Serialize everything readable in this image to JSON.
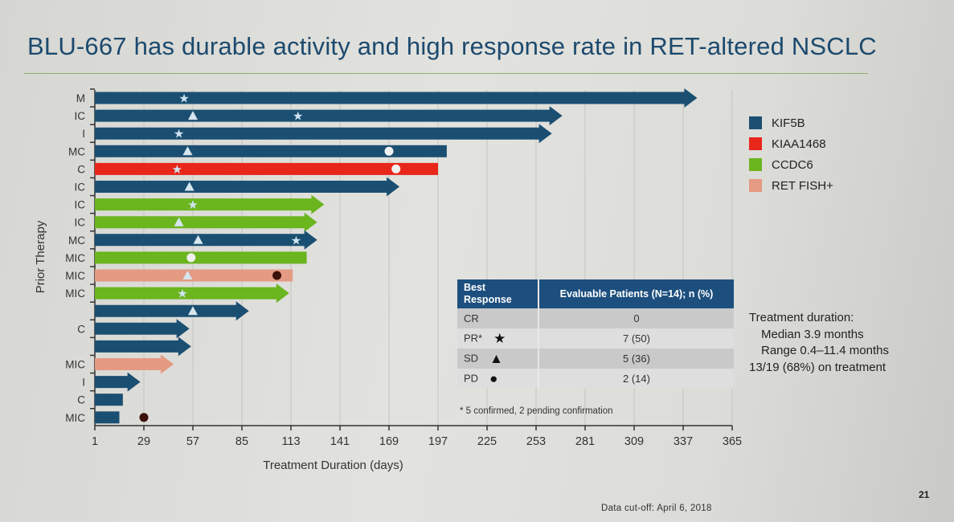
{
  "title": "BLU-667 has durable activity and high response rate in RET-altered NSCLC",
  "colors": {
    "KIF5B": "#1b4f72",
    "KIAA1468": "#e8261a",
    "CCDC6": "#6bb51f",
    "RET FISH+": "#e59a83",
    "title": "#1c4a6e"
  },
  "legend": [
    "KIF5B",
    "KIAA1468",
    "CCDC6",
    "RET FISH+"
  ],
  "chart_data": {
    "type": "swimmer",
    "xlabel": "Treatment Duration (days)",
    "ylabel": "Prior Therapy",
    "xlim": [
      1,
      365
    ],
    "xticks": [
      1,
      29,
      57,
      85,
      113,
      141,
      169,
      197,
      225,
      253,
      281,
      309,
      337,
      365
    ],
    "grid": true,
    "legend_position": "right",
    "patients": [
      {
        "prior": "M",
        "fusion": "KIF5B",
        "duration": 345,
        "ongoing": true,
        "markers": [
          {
            "type": "PR",
            "day": 52
          }
        ]
      },
      {
        "prior": "IC",
        "fusion": "KIF5B",
        "duration": 268,
        "ongoing": true,
        "markers": [
          {
            "type": "SD",
            "day": 57
          },
          {
            "type": "PR",
            "day": 117
          }
        ]
      },
      {
        "prior": "I",
        "fusion": "KIF5B",
        "duration": 262,
        "ongoing": true,
        "markers": [
          {
            "type": "PR",
            "day": 49
          }
        ]
      },
      {
        "prior": "MC",
        "fusion": "KIF5B",
        "duration": 202,
        "ongoing": false,
        "markers": [
          {
            "type": "SD",
            "day": 54
          },
          {
            "type": "PD",
            "day": 169
          }
        ]
      },
      {
        "prior": "C",
        "fusion": "KIAA1468",
        "duration": 197,
        "ongoing": false,
        "markers": [
          {
            "type": "PR",
            "day": 48
          },
          {
            "type": "PD",
            "day": 173
          }
        ]
      },
      {
        "prior": "IC",
        "fusion": "KIF5B",
        "duration": 175,
        "ongoing": true,
        "markers": [
          {
            "type": "SD",
            "day": 55
          }
        ]
      },
      {
        "prior": "IC",
        "fusion": "CCDC6",
        "duration": 132,
        "ongoing": true,
        "markers": [
          {
            "type": "PR",
            "day": 57
          }
        ]
      },
      {
        "prior": "IC",
        "fusion": "CCDC6",
        "duration": 128,
        "ongoing": true,
        "markers": [
          {
            "type": "SD",
            "day": 49
          }
        ]
      },
      {
        "prior": "MC",
        "fusion": "KIF5B",
        "duration": 128,
        "ongoing": true,
        "markers": [
          {
            "type": "SD",
            "day": 60
          },
          {
            "type": "PR",
            "day": 116
          }
        ]
      },
      {
        "prior": "MIC",
        "fusion": "CCDC6",
        "duration": 122,
        "ongoing": false,
        "markers": [
          {
            "type": "PD",
            "day": 56
          }
        ]
      },
      {
        "prior": "MIC",
        "fusion": "RET FISH+",
        "duration": 114,
        "ongoing": false,
        "markers": [
          {
            "type": "SD",
            "day": 54
          },
          {
            "type": "PD",
            "day": 105
          }
        ]
      },
      {
        "prior": "MIC",
        "fusion": "CCDC6",
        "duration": 112,
        "ongoing": true,
        "markers": [
          {
            "type": "PR",
            "day": 51
          }
        ]
      },
      {
        "prior": "",
        "fusion": "KIF5B",
        "duration": 89,
        "ongoing": true,
        "markers": [
          {
            "type": "SD",
            "day": 57
          }
        ]
      },
      {
        "prior": "C",
        "fusion": "KIF5B",
        "duration": 55,
        "ongoing": true,
        "markers": []
      },
      {
        "prior": "",
        "fusion": "KIF5B",
        "duration": 56,
        "ongoing": true,
        "markers": []
      },
      {
        "prior": "MIC",
        "fusion": "RET FISH+",
        "duration": 46,
        "ongoing": true,
        "markers": []
      },
      {
        "prior": "I",
        "fusion": "KIF5B",
        "duration": 27,
        "ongoing": true,
        "markers": []
      },
      {
        "prior": "C",
        "fusion": "KIF5B",
        "duration": 17,
        "ongoing": false,
        "markers": []
      },
      {
        "prior": "MIC",
        "fusion": "KIF5B",
        "duration": 15,
        "ongoing": false,
        "markers": [
          {
            "type": "PD",
            "day": 29
          }
        ]
      }
    ]
  },
  "table": {
    "header": [
      "Best Response",
      "Evaluable Patients (N=14); n (%)"
    ],
    "rows": [
      {
        "label": "CR",
        "symbol": "",
        "value": "0"
      },
      {
        "label": "PR*",
        "symbol": "★",
        "value": "7 (50)"
      },
      {
        "label": "SD",
        "symbol": "▲",
        "value": "5 (36)"
      },
      {
        "label": "PD",
        "symbol": "●",
        "value": "2 (14)"
      }
    ],
    "footnote": "* 5 confirmed, 2 pending confirmation"
  },
  "summary": {
    "heading": "Treatment duration:",
    "median": "Median 3.9 months",
    "range": "Range 0.4–11.4 months",
    "on_treatment": "13/19 (68%) on treatment"
  },
  "page_number": "21",
  "cutoff": "Data cut-off: April 6, 2018"
}
